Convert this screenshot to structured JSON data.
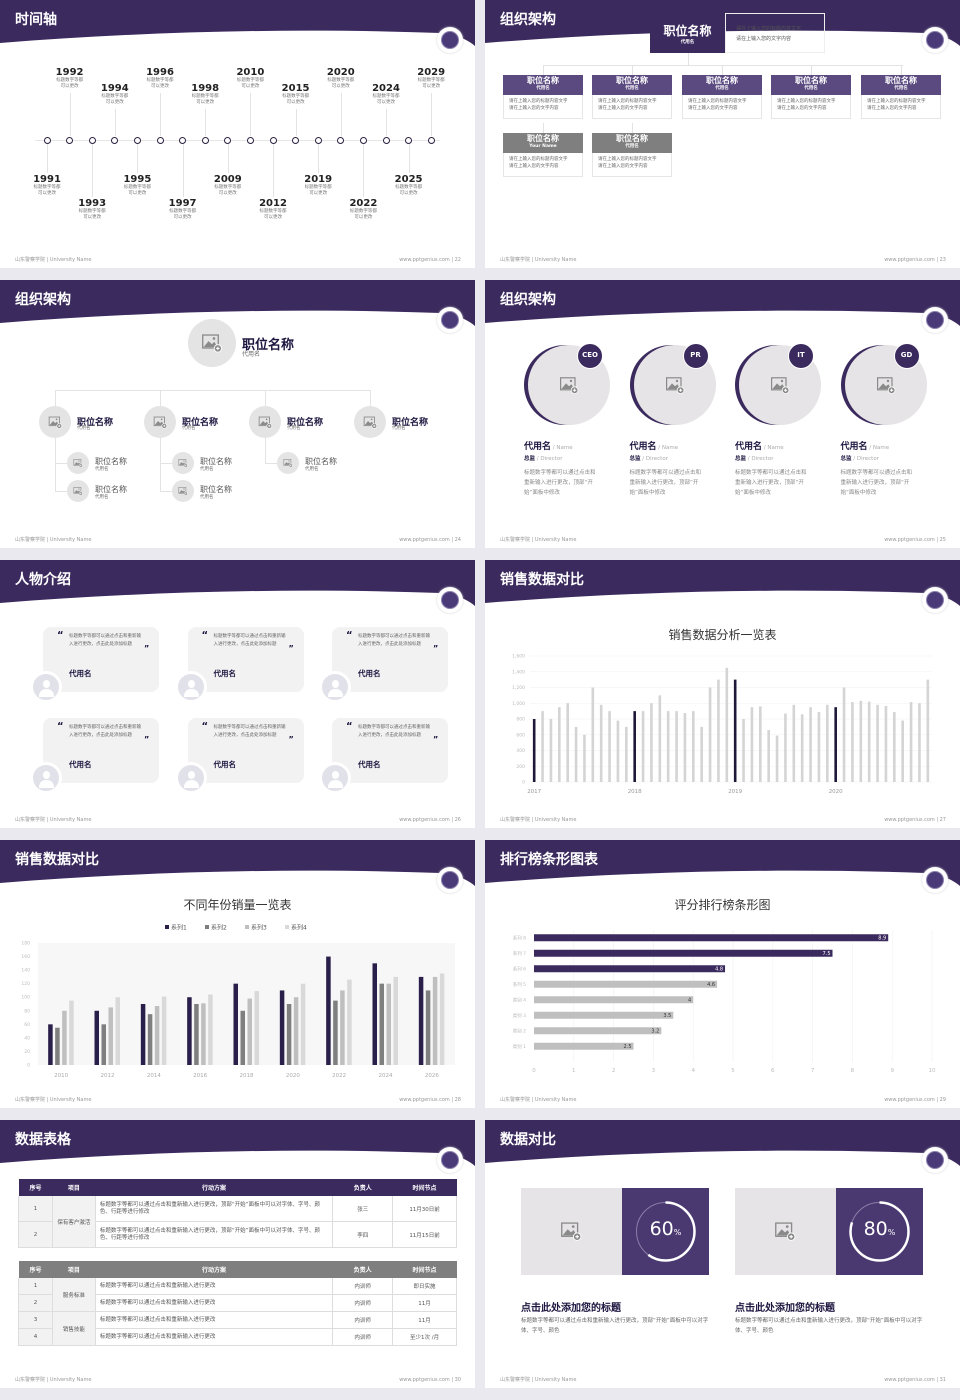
{
  "colors": {
    "purple": "#3b2a5e",
    "purple_mid": "#5a4a80",
    "gray_header": "#7f7f7f",
    "dark_bar": "#1f1838",
    "light_bar": "#d4d4d4",
    "bg_gray": "#e6e4e6"
  },
  "footer": {
    "left": "山东警察学院 | University Name",
    "site": "www.pptgenius.com"
  },
  "slides": [
    {
      "title": "时间轴",
      "page": "22"
    },
    {
      "title": "组织架构",
      "page": "23"
    },
    {
      "title": "组织架构",
      "page": "24"
    },
    {
      "title": "组织架构",
      "page": "25"
    },
    {
      "title": "人物介绍",
      "page": "26"
    },
    {
      "title": "销售数据对比",
      "page": "27"
    },
    {
      "title": "销售数据对比",
      "page": "28"
    },
    {
      "title": "排行榜条形图表",
      "page": "29"
    },
    {
      "title": "数据表格",
      "page": "30"
    },
    {
      "title": "数据对比",
      "page": "31"
    }
  ],
  "timeline": {
    "desc_line1": "标题数字等都",
    "desc_line2": "可以更改",
    "items": [
      {
        "year": "1991",
        "pos": "below"
      },
      {
        "year": "1992",
        "pos": "above"
      },
      {
        "year": "1993",
        "pos": "below-far"
      },
      {
        "year": "1994",
        "pos": "above-near"
      },
      {
        "year": "1995",
        "pos": "below"
      },
      {
        "year": "1996",
        "pos": "above"
      },
      {
        "year": "1997",
        "pos": "below-far"
      },
      {
        "year": "1998",
        "pos": "above-near"
      },
      {
        "year": "2009",
        "pos": "below"
      },
      {
        "year": "2010",
        "pos": "above"
      },
      {
        "year": "2012",
        "pos": "below-far"
      },
      {
        "year": "2015",
        "pos": "above-near"
      },
      {
        "year": "2019",
        "pos": "below"
      },
      {
        "year": "2020",
        "pos": "above"
      },
      {
        "year": "2022",
        "pos": "below-far"
      },
      {
        "year": "2024",
        "pos": "above-near"
      },
      {
        "year": "2025",
        "pos": "below"
      },
      {
        "year": "2029",
        "pos": "above"
      }
    ]
  },
  "org1": {
    "top": {
      "title": "职位名称",
      "sub": "代用名",
      "desc1": "请在上输入您的标题内容文字",
      "desc2": "请在上输入您的文字内容"
    },
    "row1": [
      {
        "title": "职位名称",
        "sub": "代用名",
        "d1": "请在上输入您的标题内容文字",
        "d2": "请在上输入您的文字内容"
      },
      {
        "title": "职位名称",
        "sub": "代用名",
        "d1": "请在上输入您的标题内容文字",
        "d2": "请在上输入您的文字内容"
      },
      {
        "title": "职位名称",
        "sub": "代用名",
        "d1": "请在上输入您的标题内容文字",
        "d2": "请在上输入您的文字内容"
      },
      {
        "title": "职位名称",
        "sub": "代用名",
        "d1": "请在上输入您的标题内容文字",
        "d2": "请在上输入您的文字内容"
      },
      {
        "title": "职位名称",
        "sub": "代用名",
        "d1": "请在上输入您的标题内容文字",
        "d2": "请在上输入您的文字内容"
      }
    ],
    "row2": [
      {
        "title": "职位名称",
        "sub": "Your Name",
        "d1": "请在上输入您的标题内容文字",
        "d2": "请在上输入您的文字内容"
      },
      {
        "title": "职位名称",
        "sub": "代用名",
        "d1": "请在上输入您的标题内容文字",
        "d2": "请在上输入您的文字内容"
      }
    ]
  },
  "org2": {
    "top": {
      "title": "职位名称",
      "sub": "代用名"
    },
    "level2": [
      {
        "title": "职位名称",
        "sub": "代用名"
      },
      {
        "title": "职位名称",
        "sub": "代用名"
      },
      {
        "title": "职位名称",
        "sub": "代用名"
      },
      {
        "title": "职位名称",
        "sub": "代用名"
      }
    ],
    "level3": [
      [
        {
          "title": "职位名称",
          "sub": "代用名"
        },
        {
          "title": "职位名称",
          "sub": "代用名"
        }
      ],
      [
        {
          "title": "职位名称",
          "sub": "代用名"
        },
        {
          "title": "职位名称",
          "sub": "代用名"
        }
      ],
      [
        {
          "title": "职位名称",
          "sub": "代用名"
        }
      ],
      []
    ]
  },
  "team": [
    {
      "badge": "CEO",
      "name": "代用名",
      "name_en": "/ Name",
      "role": "总监",
      "role_en": "/  Director",
      "desc": "标题数字等都可以通过点击和重新输入进行更改，顶部“开始”面板中修改"
    },
    {
      "badge": "PR",
      "name": "代用名",
      "name_en": "/ Name",
      "role": "总监",
      "role_en": "/  Director",
      "desc": "标题数字等都可以通过点击和重新输入进行更改，顶部“开始”面板中修改"
    },
    {
      "badge": "IT",
      "name": "代用名",
      "name_en": "/ Name",
      "role": "总监",
      "role_en": "/  Director",
      "desc": "标题数字等都可以通过点击和重新输入进行更改，顶部“开始”面板中修改"
    },
    {
      "badge": "GD",
      "name": "代用名",
      "name_en": "/ Name",
      "role": "总监",
      "role_en": "/  Director",
      "desc": "标题数字等都可以通过点击和重新输入进行更改，顶部“开始”面板中修改"
    }
  ],
  "people": [
    {
      "quote": "标题数字等都可以通过点击和重新输入进行更改，点击此处添加标题",
      "name": "代用名"
    },
    {
      "quote": "标题数字等都可以通过点击和重新输入进行更改，点击此处添加标题",
      "name": "代用名"
    },
    {
      "quote": "标题数字等都可以通过点击和重新输入进行更改，点击此处添加标题",
      "name": "代用名"
    },
    {
      "quote": "标题数字等都可以通过点击和重新输入进行更改，点击此处添加标题",
      "name": "代用名"
    },
    {
      "quote": "标题数字等都可以通过点击和重新输入进行更改，点击此处添加标题",
      "name": "代用名"
    },
    {
      "quote": "标题数字等都可以通过点击和重新输入进行更改，点击此处添加标题",
      "name": "代用名"
    }
  ],
  "chart_data": [
    {
      "type": "bar",
      "title": "销售数据分析一览表",
      "ylim": [
        0,
        1600
      ],
      "yticks": [
        "0",
        "200",
        "400",
        "600",
        "800",
        "1,000",
        "1,200",
        "1,400",
        "1,600"
      ],
      "xlabels": [
        "2017",
        "2018",
        "2019",
        "2020"
      ],
      "highlight_every": 12,
      "values": [
        800,
        900,
        800,
        950,
        1000,
        700,
        600,
        1200,
        980,
        900,
        780,
        700,
        900,
        900,
        1000,
        1100,
        900,
        900,
        875,
        900,
        700,
        1200,
        1300,
        1450,
        1300,
        800,
        950,
        960,
        660,
        590,
        870,
        980,
        860,
        950,
        890,
        980,
        950,
        1200,
        1015,
        1030,
        1020,
        980,
        965,
        890,
        780,
        1015,
        1000,
        1300
      ],
      "grid": true
    },
    {
      "type": "bar",
      "title": "不同年份销量一览表",
      "ylim": [
        0,
        180
      ],
      "yticks": [
        "0",
        "20",
        "40",
        "60",
        "80",
        "100",
        "120",
        "140",
        "160",
        "180"
      ],
      "categories": [
        "2010",
        "2012",
        "2014",
        "2016",
        "2018",
        "2020",
        "2022",
        "2024",
        "2026"
      ],
      "legend": "top",
      "series": [
        {
          "name": "系列1",
          "color": "#2a1f4a",
          "values": [
            60,
            80,
            90,
            100,
            120,
            110,
            160,
            150,
            130
          ]
        },
        {
          "name": "系列2",
          "color": "#7f7f7f",
          "values": [
            55,
            60,
            75,
            90,
            80,
            90,
            95,
            120,
            110
          ]
        },
        {
          "name": "系列3",
          "color": "#bfbfbf",
          "values": [
            80,
            85,
            87,
            91,
            98,
            100,
            110,
            120,
            130
          ]
        },
        {
          "name": "系列4",
          "color": "#d9d9d9",
          "values": [
            95,
            100,
            101,
            104,
            109,
            120,
            126,
            130,
            135
          ]
        }
      ]
    },
    {
      "type": "bar",
      "orientation": "horizontal",
      "title": "评分排行榜条形图",
      "xlim": [
        0,
        10
      ],
      "xticks": [
        "0",
        "1",
        "2",
        "3",
        "4",
        "5",
        "6",
        "7",
        "8",
        "9",
        "10"
      ],
      "categories": [
        "系列 8",
        "系列 7",
        "系列 6",
        "系列 5",
        "类别 4",
        "类别 3",
        "类别 2",
        "类别 1"
      ],
      "values": [
        8.9,
        7.5,
        4.8,
        4.6,
        4,
        3.5,
        3.2,
        2.5
      ],
      "data_labels": [
        "8.9",
        "7.5",
        "4.8",
        "4.6",
        "4",
        "3.5",
        "3.2",
        "2.5"
      ],
      "highlight_count": 3
    }
  ],
  "table1": {
    "headers": [
      "序号",
      "项目",
      "行动方案",
      "负责人",
      "时间节点"
    ],
    "group": "保有客户激活",
    "rows": [
      {
        "no": "1",
        "plan": "标题数字等都可以通过点击和重新输入进行更改，顶部“开始”面板中可以对字体、字号、颜色、行距等进行修改",
        "owner": "张三",
        "time": "11月30日前"
      },
      {
        "no": "2",
        "plan": "标题数字等都可以通过点击和重新输入进行更改，顶部“开始”面板中可以对字体、字号、颜色、行距等进行修改",
        "owner": "李四",
        "time": "11月15日前"
      }
    ]
  },
  "table2": {
    "headers": [
      "序号",
      "项目",
      "行动方案",
      "负责人",
      "时间节点"
    ],
    "groups": [
      "服务标准",
      "销售技能"
    ],
    "rows": [
      {
        "no": "1",
        "plan": "标题数字等都可以通过点击和重新输入进行更改",
        "owner": "内训师",
        "time": "即日实施"
      },
      {
        "no": "2",
        "plan": "标题数字等都可以通过点击和重新输入进行更改",
        "owner": "内训师",
        "time": "11月"
      },
      {
        "no": "3",
        "plan": "标题数字等都可以通过点击和重新输入进行更改",
        "owner": "内训师",
        "time": "11月"
      },
      {
        "no": "4",
        "plan": "标题数字等都可以通过点击和重新输入进行更改",
        "owner": "内训师",
        "time": "至少1次 /月"
      }
    ]
  },
  "compare": [
    {
      "percent": 60,
      "value": "60",
      "unit": "%",
      "title": "点击此处添加您的标题",
      "desc": "标题数字等都可以通过点击和重新输入进行更改，顶部“开始”面板中可以对字体、字号、颜色"
    },
    {
      "percent": 80,
      "value": "80",
      "unit": "%",
      "title": "点击此处添加您的标题",
      "desc": "标题数字等都可以通过点击和重新输入进行更改，顶部“开始”面板中可以对字体、字号、颜色"
    }
  ]
}
